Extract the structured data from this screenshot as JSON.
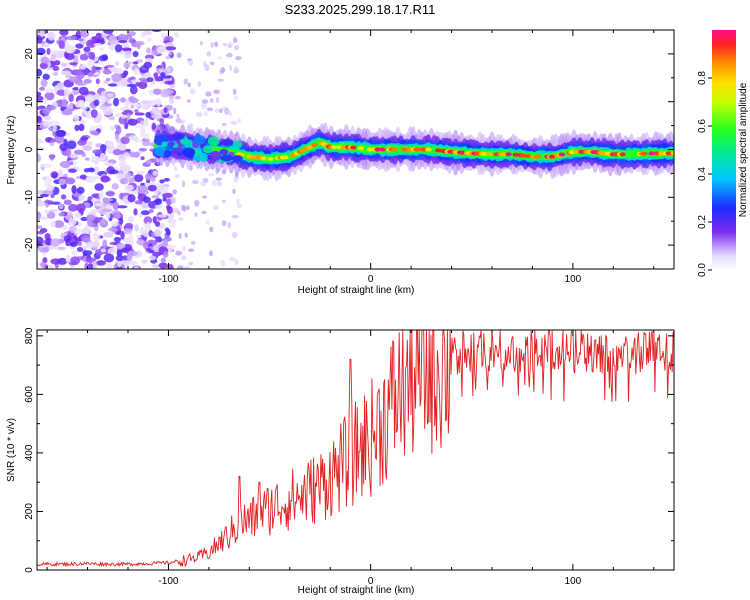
{
  "title": "S233.2025.299.18.17.R11",
  "chart_data": [
    {
      "type": "heatmap",
      "name": "spectrogram",
      "xlabel": "Height of straight line (km)",
      "ylabel": "Frequency (Hz)",
      "xlim": [
        -165,
        150
      ],
      "ylim": [
        -25,
        25
      ],
      "xticks": [
        -100,
        0,
        100
      ],
      "yticks": [
        -20,
        -10,
        0,
        10,
        20
      ],
      "colorbar": {
        "label": "Normalized spectral amplitude",
        "range": [
          0,
          1
        ],
        "ticks": [
          "0.0",
          "0.2",
          "0.4",
          "0.6",
          "0.8"
        ]
      },
      "ridge_frequency_hz": {
        "x": [
          -110,
          -100,
          -90,
          -80,
          -70,
          -60,
          -50,
          -40,
          -30,
          -25,
          -20,
          -10,
          0,
          10,
          20,
          30,
          40,
          50,
          60,
          70,
          80,
          90,
          100,
          110,
          120,
          130,
          140,
          150
        ],
        "y": [
          1.0,
          1.0,
          0.5,
          0,
          -0.5,
          -1.5,
          -2.0,
          -1.5,
          0.5,
          1.5,
          0.5,
          0.5,
          0,
          0,
          0,
          0,
          -0.5,
          -0.8,
          -1.0,
          -1.0,
          -1.5,
          -1.5,
          -0.5,
          -0.5,
          -1.0,
          -1.0,
          -0.8,
          -0.8
        ]
      },
      "noise_region_x": [
        -165,
        -100
      ]
    },
    {
      "type": "line",
      "name": "snr",
      "xlabel": "Height of straight line (km)",
      "ylabel": "SNR (10 * v/v)",
      "xlim": [
        -165,
        150
      ],
      "ylim": [
        0,
        820
      ],
      "xticks": [
        -100,
        0,
        100
      ],
      "yticks": [
        0,
        200,
        400,
        600,
        800
      ],
      "series": [
        {
          "name": "SNR",
          "color": "#e02020",
          "x": [
            -165,
            -150,
            -140,
            -130,
            -120,
            -110,
            -100,
            -95,
            -90,
            -85,
            -80,
            -75,
            -70,
            -65,
            -60,
            -55,
            -50,
            -45,
            -40,
            -35,
            -30,
            -25,
            -20,
            -15,
            -10,
            -5,
            0,
            5,
            10,
            15,
            20,
            25,
            30,
            35,
            40,
            50,
            60,
            70,
            80,
            90,
            100,
            110,
            120,
            130,
            140,
            150
          ],
          "values": [
            20,
            20,
            22,
            20,
            20,
            22,
            25,
            30,
            35,
            45,
            60,
            90,
            120,
            160,
            170,
            190,
            210,
            225,
            240,
            250,
            270,
            290,
            320,
            350,
            380,
            420,
            450,
            500,
            560,
            620,
            660,
            690,
            700,
            710,
            720,
            725,
            730,
            730,
            728,
            725,
            725,
            725,
            722,
            722,
            720,
            715
          ]
        }
      ],
      "peaks": [
        {
          "x": -65,
          "y": 320
        },
        {
          "x": -55,
          "y": 300
        },
        {
          "x": -10,
          "y": 720
        },
        {
          "x": 100,
          "y": 820
        }
      ]
    }
  ]
}
